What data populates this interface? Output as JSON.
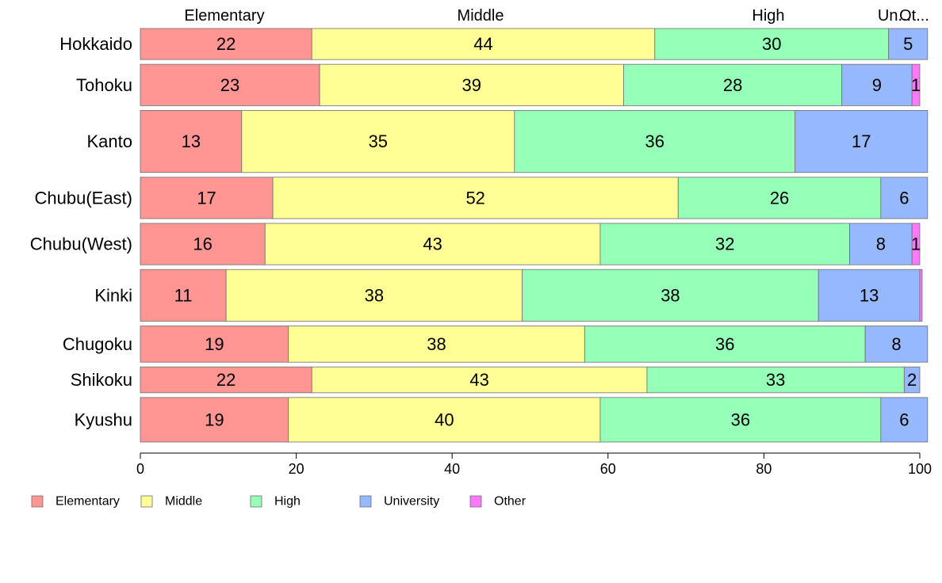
{
  "chart_data": {
    "type": "bar",
    "orientation": "horizontal",
    "stacked": true,
    "percent": true,
    "categories": [
      "Hokkaido",
      "Tohoku",
      "Kanto",
      "Chubu(East)",
      "Chubu(West)",
      "Kinki",
      "Chugoku",
      "Shikoku",
      "Kyushu"
    ],
    "series": [
      {
        "name": "Elementary",
        "color": "#ff9694",
        "values": [
          22,
          23,
          13,
          17,
          16,
          11,
          19,
          22,
          19
        ]
      },
      {
        "name": "Middle",
        "color": "#ffff96",
        "values": [
          44,
          39,
          35,
          52,
          43,
          38,
          38,
          43,
          40
        ]
      },
      {
        "name": "High",
        "color": "#96ffb8",
        "values": [
          30,
          28,
          36,
          26,
          32,
          38,
          36,
          33,
          36
        ]
      },
      {
        "name": "University",
        "color": "#96b8ff",
        "values": [
          5,
          9,
          17,
          6,
          8,
          13,
          8,
          2,
          6
        ]
      },
      {
        "name": "Other",
        "color": "#ff78ff",
        "values": [
          0,
          1,
          0,
          0,
          1,
          0.3,
          0,
          0,
          0
        ]
      }
    ],
    "segment_labels": [
      [
        "22",
        "44",
        "30",
        "5",
        ""
      ],
      [
        "23",
        "39",
        "28",
        "9",
        "1"
      ],
      [
        "13",
        "35",
        "36",
        "17",
        ""
      ],
      [
        "17",
        "52",
        "26",
        "6",
        ""
      ],
      [
        "16",
        "43",
        "32",
        "8",
        "1"
      ],
      [
        "11",
        "38",
        "38",
        "13",
        ""
      ],
      [
        "19",
        "38",
        "36",
        "8",
        ""
      ],
      [
        "22",
        "43",
        "33",
        "2",
        ""
      ],
      [
        "19",
        "40",
        "36",
        "6",
        ""
      ]
    ],
    "row_weights": [
      3,
      4,
      6,
      4,
      4,
      5,
      3.5,
      2.5,
      4.3
    ],
    "top_labels": [
      "Elementary",
      "Middle",
      "High",
      "Un...",
      "Ot..."
    ],
    "xlim": [
      0,
      100
    ],
    "xticks": [
      0,
      20,
      40,
      60,
      80,
      100
    ],
    "tick_labels": [
      "0",
      "20",
      "40",
      "60",
      "80",
      "100"
    ],
    "legend": [
      "Elementary",
      "Middle",
      "High",
      "University",
      "Other"
    ],
    "legend_position": "bottom-left",
    "grid": false
  }
}
